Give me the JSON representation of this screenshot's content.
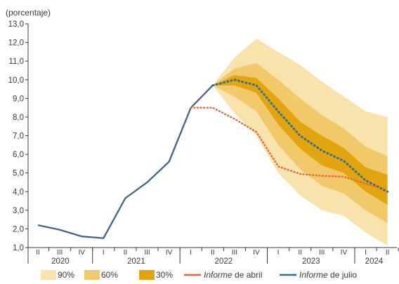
{
  "chart_data": {
    "type": "line",
    "unit_label": "(porcentaje)",
    "ylim": [
      1.0,
      13.0
    ],
    "yticks": [
      "13,0",
      "12,0",
      "11,0",
      "10,0",
      "9,0",
      "8,0",
      "7,0",
      "6,0",
      "5,0",
      "4,0",
      "3,0",
      "2,0",
      "1,0"
    ],
    "quarters": [
      {
        "label": "II",
        "year": 2020
      },
      {
        "label": "III",
        "year": 2020
      },
      {
        "label": "IV",
        "year": 2020
      },
      {
        "label": "I",
        "year": 2021
      },
      {
        "label": "II",
        "year": 2021
      },
      {
        "label": "III",
        "year": 2021
      },
      {
        "label": "IV",
        "year": 2021
      },
      {
        "label": "I",
        "year": 2022
      },
      {
        "label": "II",
        "year": 2022
      },
      {
        "label": "III",
        "year": 2022
      },
      {
        "label": "IV",
        "year": 2022
      },
      {
        "label": "I",
        "year": 2023
      },
      {
        "label": "II",
        "year": 2023
      },
      {
        "label": "III",
        "year": 2023
      },
      {
        "label": "IV",
        "year": 2023
      },
      {
        "label": "I",
        "year": 2024
      },
      {
        "label": "II",
        "year": 2024
      }
    ],
    "years": [
      "2020",
      "2021",
      "2022",
      "2023",
      "2024"
    ],
    "history": {
      "name": "Informe de julio",
      "x": [
        0,
        1,
        2,
        3,
        4,
        5,
        6,
        7,
        8
      ],
      "y": [
        2.2,
        1.95,
        1.6,
        1.5,
        3.65,
        4.5,
        5.6,
        8.5,
        9.7
      ]
    },
    "series": [
      {
        "name": "Informe de julio",
        "style": "dotted",
        "color": "#2e6e8e",
        "x": [
          8,
          9,
          10,
          11,
          12,
          13,
          14,
          15,
          16
        ],
        "y": [
          9.7,
          10.0,
          9.7,
          8.3,
          7.0,
          6.2,
          5.65,
          4.6,
          4.0
        ]
      },
      {
        "name": "Informe de abril",
        "style": "dotted",
        "color": "#e8643a",
        "x": [
          7,
          8,
          9,
          10,
          11,
          12,
          13,
          14,
          15.5
        ],
        "y": [
          8.5,
          8.5,
          7.9,
          7.2,
          5.35,
          4.95,
          4.85,
          4.8,
          4.25
        ]
      }
    ],
    "fan": {
      "x": [
        8,
        9,
        10,
        11,
        12,
        13,
        14,
        15,
        16
      ],
      "bands": [
        {
          "name": "90%",
          "color": "#f8e3ad",
          "lower": [
            9.7,
            8.2,
            7.0,
            5.0,
            3.8,
            3.0,
            2.7,
            1.8,
            1.1
          ],
          "upper": [
            9.7,
            11.2,
            12.2,
            11.5,
            10.8,
            9.9,
            9.1,
            8.3,
            8.0
          ]
        },
        {
          "name": "60%",
          "color": "#f1c86a",
          "lower": [
            9.7,
            9.1,
            8.3,
            6.5,
            5.2,
            4.3,
            3.9,
            3.0,
            2.3
          ],
          "upper": [
            9.7,
            10.6,
            10.9,
            10.0,
            9.0,
            8.1,
            7.4,
            6.4,
            5.9
          ]
        },
        {
          "name": "30%",
          "color": "#e3a50f",
          "lower": [
            9.7,
            9.7,
            9.3,
            7.6,
            6.3,
            5.4,
            5.0,
            4.0,
            3.3
          ],
          "upper": [
            9.7,
            10.25,
            10.1,
            9.0,
            7.75,
            7.0,
            6.35,
            5.3,
            4.9
          ]
        }
      ]
    },
    "legend": {
      "position": "bottom",
      "items": [
        {
          "label": "90%",
          "kind": "swatch",
          "color": "#f8e3ad"
        },
        {
          "label": "60%",
          "kind": "swatch",
          "color": "#f1c86a"
        },
        {
          "label": "30%",
          "kind": "swatch",
          "color": "#e3a50f"
        },
        {
          "label": "de abril",
          "italic": "Informe",
          "kind": "line",
          "color": "#e8643a"
        },
        {
          "label": "de julio",
          "italic": "Informe",
          "kind": "line",
          "color": "#2e6e8e"
        }
      ]
    },
    "grid": false
  }
}
